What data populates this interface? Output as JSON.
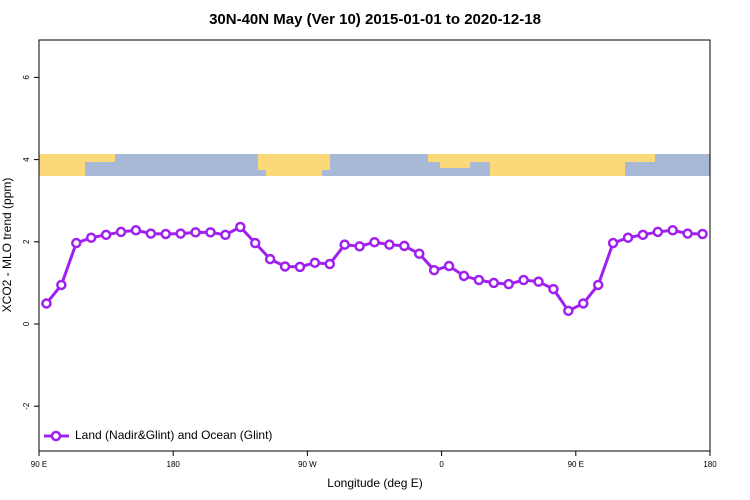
{
  "chart_data": {
    "type": "line",
    "title": "30N-40N May (Ver 10)   2015-01-01 to 2020-12-18",
    "x_label": "Longitude (deg E)",
    "y_label": "XCO2 - MLO trend (ppm)",
    "x": [
      95,
      105,
      115,
      125,
      135,
      145,
      155,
      165,
      175,
      185,
      195,
      205,
      215,
      225,
      235,
      245,
      255,
      265,
      275,
      285,
      295,
      305,
      315,
      325,
      335,
      345,
      355,
      365,
      375,
      385,
      395,
      405,
      415,
      425,
      435,
      445,
      455,
      465,
      475,
      485,
      495,
      505,
      515,
      525,
      535
    ],
    "series": [
      {
        "name": "Land (Nadir&Glint) and Ocean (Glint)",
        "color": "#a020f0",
        "values": [
          0.5,
          0.95,
          1.97,
          2.1,
          2.17,
          2.24,
          2.28,
          2.2,
          2.19,
          2.2,
          2.23,
          2.23,
          2.17,
          2.36,
          1.97,
          1.58,
          1.4,
          1.39,
          1.49,
          1.46,
          1.93,
          1.89,
          1.99,
          1.93,
          1.9,
          1.71,
          1.31,
          1.41,
          1.17,
          1.07,
          1.0,
          0.97,
          1.07,
          1.03,
          0.85,
          0.32,
          0.5,
          0.95,
          1.97,
          2.1,
          2.17,
          2.24,
          2.28,
          2.2,
          2.19
        ]
      }
    ],
    "xlim": [
      90,
      540
    ],
    "xticks": [
      {
        "value": 90,
        "label": "90 E"
      },
      180,
      {
        "value": 270,
        "label": "90 W"
      },
      {
        "value": 360,
        "label": "0"
      },
      {
        "value": 450,
        "label": "90 E"
      },
      {
        "value": 540,
        "label": "180"
      }
    ],
    "ylim": [
      -3.09,
      6.91
    ],
    "yticks": [
      -2,
      0,
      2,
      4,
      6
    ],
    "legend": "bottom-left"
  }
}
